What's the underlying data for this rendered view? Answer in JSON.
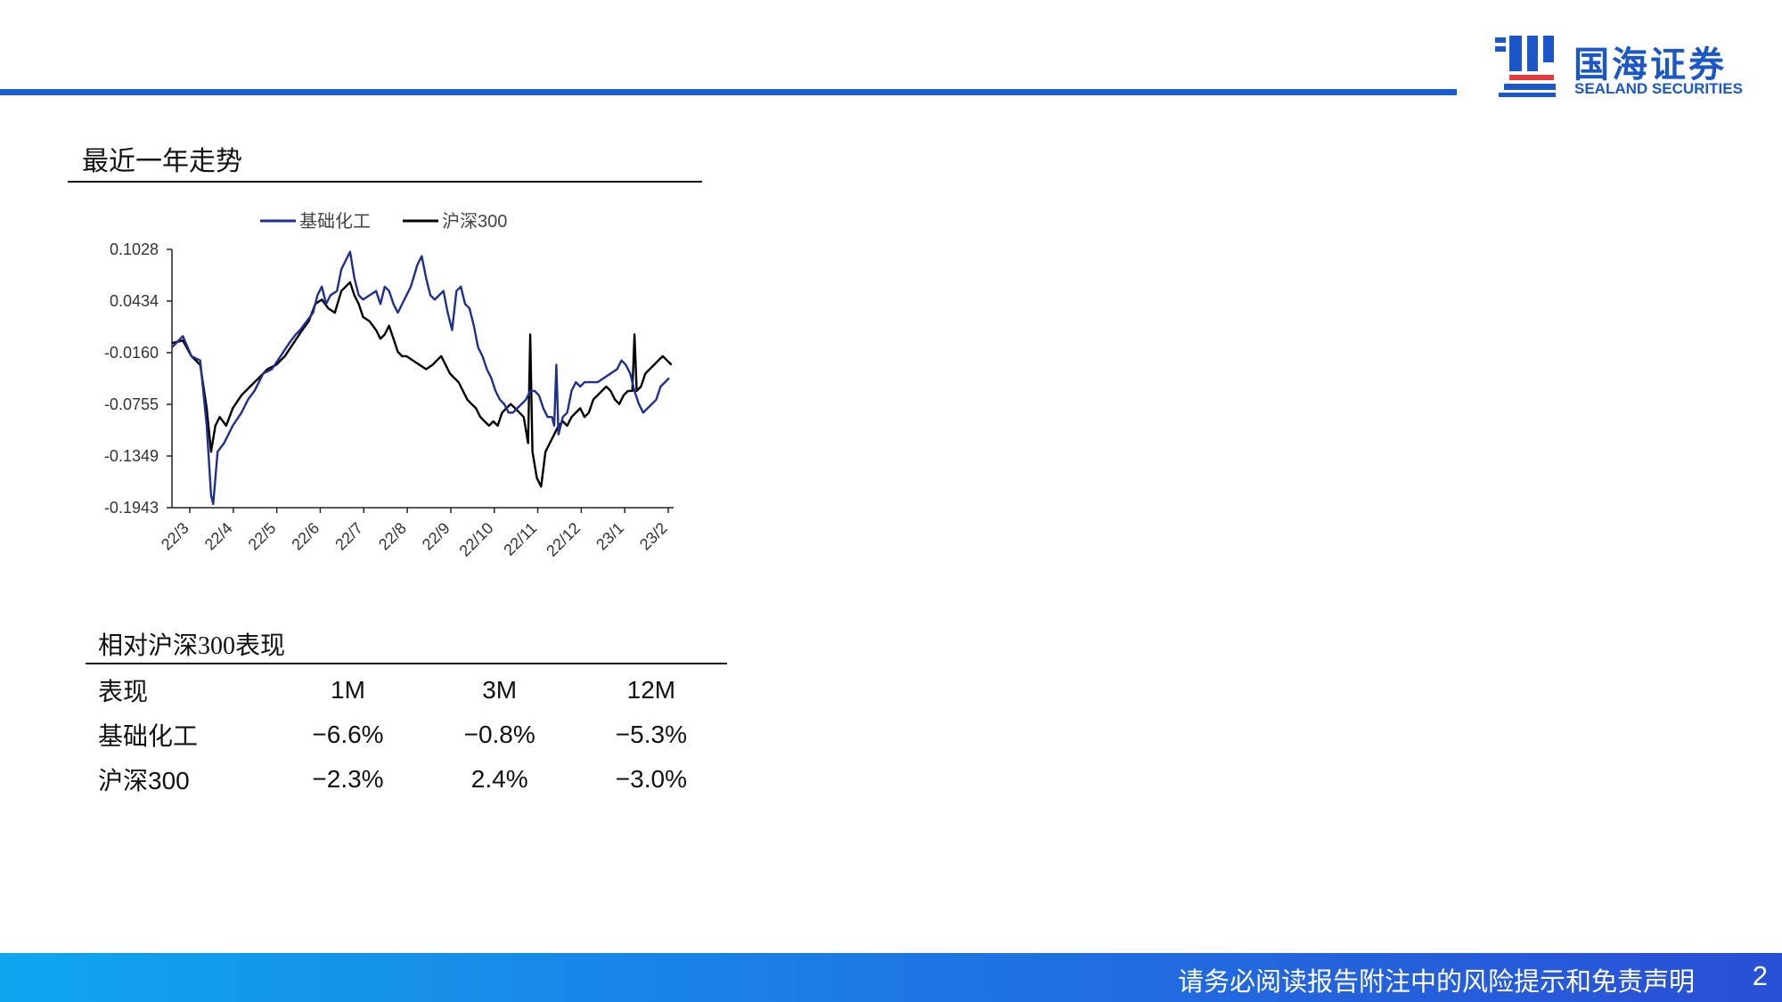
{
  "header": {
    "logo_cn": "国海证券",
    "logo_en": "SEALAND SECURITIES",
    "brand_color": "#1a5bd6"
  },
  "section_title": "最近一年走势",
  "chart_data": {
    "type": "line",
    "title": "",
    "xlabel": "",
    "ylabel": "",
    "ylim": [
      -0.1943,
      0.1028
    ],
    "yticks": [
      "0.1028",
      "0.0434",
      "-0.0160",
      "-0.0755",
      "-0.1349",
      "-0.1943"
    ],
    "xticks": [
      "22/3",
      "22/4",
      "22/5",
      "22/6",
      "22/7",
      "22/8",
      "22/9",
      "22/10",
      "22/11",
      "22/12",
      "23/1",
      "23/2"
    ],
    "legend": "top-center",
    "grid": false,
    "x_count": 232,
    "series": [
      {
        "name": "基础化工",
        "color": "#1f2f8f",
        "points": [
          [
            0,
            -0.01
          ],
          [
            5,
            0.003
          ],
          [
            9,
            -0.02
          ],
          [
            13,
            -0.025
          ],
          [
            16,
            -0.1
          ],
          [
            18,
            -0.18
          ],
          [
            19,
            -0.19
          ],
          [
            21,
            -0.13
          ],
          [
            24,
            -0.12
          ],
          [
            28,
            -0.1
          ],
          [
            32,
            -0.085
          ],
          [
            35,
            -0.07
          ],
          [
            38,
            -0.06
          ],
          [
            42,
            -0.04
          ],
          [
            46,
            -0.035
          ],
          [
            50,
            -0.02
          ],
          [
            54,
            -0.005
          ],
          [
            57,
            0.005
          ],
          [
            59,
            0.01
          ],
          [
            62,
            0.02
          ],
          [
            65,
            0.03
          ],
          [
            67,
            0.05
          ],
          [
            69,
            0.06
          ],
          [
            71,
            0.04
          ],
          [
            73,
            0.05
          ],
          [
            76,
            0.055
          ],
          [
            78,
            0.08
          ],
          [
            80,
            0.09
          ],
          [
            82,
            0.1
          ],
          [
            84,
            0.07
          ],
          [
            86,
            0.05
          ],
          [
            88,
            0.045
          ],
          [
            91,
            0.05
          ],
          [
            94,
            0.055
          ],
          [
            96,
            0.04
          ],
          [
            98,
            0.06
          ],
          [
            100,
            0.055
          ],
          [
            102,
            0.04
          ],
          [
            104,
            0.03
          ],
          [
            107,
            0.045
          ],
          [
            110,
            0.06
          ],
          [
            113,
            0.085
          ],
          [
            115,
            0.095
          ],
          [
            117,
            0.07
          ],
          [
            119,
            0.05
          ],
          [
            121,
            0.045
          ],
          [
            123,
            0.05
          ],
          [
            125,
            0.055
          ],
          [
            127,
            0.03
          ],
          [
            129,
            0.01
          ],
          [
            131,
            0.055
          ],
          [
            133,
            0.06
          ],
          [
            135,
            0.04
          ],
          [
            137,
            0.035
          ],
          [
            139,
            0.015
          ],
          [
            141,
            -0.01
          ],
          [
            143,
            -0.02
          ],
          [
            145,
            -0.035
          ],
          [
            147,
            -0.045
          ],
          [
            149,
            -0.06
          ],
          [
            151,
            -0.07
          ],
          [
            153,
            -0.075
          ],
          [
            155,
            -0.085
          ],
          [
            157,
            -0.085
          ],
          [
            159,
            -0.08
          ],
          [
            161,
            -0.075
          ],
          [
            163,
            -0.07
          ],
          [
            165,
            -0.06
          ],
          [
            167,
            -0.06
          ],
          [
            169,
            -0.065
          ],
          [
            171,
            -0.08
          ],
          [
            173,
            -0.09
          ],
          [
            175,
            -0.09
          ],
          [
            176,
            -0.1
          ],
          [
            177,
            -0.03
          ],
          [
            178,
            -0.11
          ],
          [
            180,
            -0.09
          ],
          [
            182,
            -0.085
          ],
          [
            184,
            -0.06
          ],
          [
            186,
            -0.05
          ],
          [
            188,
            -0.055
          ],
          [
            190,
            -0.05
          ],
          [
            193,
            -0.05
          ],
          [
            196,
            -0.05
          ],
          [
            199,
            -0.045
          ],
          [
            202,
            -0.04
          ],
          [
            205,
            -0.035
          ],
          [
            207,
            -0.025
          ],
          [
            209,
            -0.03
          ],
          [
            211,
            -0.04
          ],
          [
            213,
            -0.06
          ],
          [
            215,
            -0.075
          ],
          [
            217,
            -0.085
          ],
          [
            219,
            -0.08
          ],
          [
            221,
            -0.075
          ],
          [
            223,
            -0.07
          ],
          [
            225,
            -0.055
          ],
          [
            227,
            -0.05
          ],
          [
            229,
            -0.045
          ]
        ]
      },
      {
        "name": "沪深300",
        "color": "#000000",
        "points": [
          [
            0,
            -0.005
          ],
          [
            5,
            -0.002
          ],
          [
            9,
            -0.02
          ],
          [
            13,
            -0.03
          ],
          [
            16,
            -0.08
          ],
          [
            18,
            -0.13
          ],
          [
            20,
            -0.1
          ],
          [
            22,
            -0.09
          ],
          [
            25,
            -0.1
          ],
          [
            28,
            -0.08
          ],
          [
            32,
            -0.065
          ],
          [
            36,
            -0.055
          ],
          [
            40,
            -0.045
          ],
          [
            44,
            -0.035
          ],
          [
            48,
            -0.03
          ],
          [
            52,
            -0.02
          ],
          [
            56,
            -0.005
          ],
          [
            60,
            0.01
          ],
          [
            63,
            0.02
          ],
          [
            66,
            0.04
          ],
          [
            69,
            0.045
          ],
          [
            72,
            0.035
          ],
          [
            75,
            0.03
          ],
          [
            78,
            0.055
          ],
          [
            80,
            0.06
          ],
          [
            82,
            0.065
          ],
          [
            84,
            0.05
          ],
          [
            86,
            0.04
          ],
          [
            88,
            0.025
          ],
          [
            91,
            0.02
          ],
          [
            94,
            0.01
          ],
          [
            96,
            0.0
          ],
          [
            98,
            0.005
          ],
          [
            100,
            0.015
          ],
          [
            102,
            0.0
          ],
          [
            104,
            -0.015
          ],
          [
            106,
            -0.02
          ],
          [
            108,
            -0.02
          ],
          [
            111,
            -0.025
          ],
          [
            114,
            -0.03
          ],
          [
            117,
            -0.035
          ],
          [
            120,
            -0.03
          ],
          [
            122,
            -0.025
          ],
          [
            124,
            -0.02
          ],
          [
            126,
            -0.03
          ],
          [
            128,
            -0.04
          ],
          [
            130,
            -0.045
          ],
          [
            132,
            -0.05
          ],
          [
            134,
            -0.06
          ],
          [
            136,
            -0.07
          ],
          [
            138,
            -0.075
          ],
          [
            140,
            -0.08
          ],
          [
            142,
            -0.09
          ],
          [
            144,
            -0.095
          ],
          [
            146,
            -0.1
          ],
          [
            148,
            -0.095
          ],
          [
            150,
            -0.1
          ],
          [
            152,
            -0.085
          ],
          [
            154,
            -0.08
          ],
          [
            156,
            -0.075
          ],
          [
            158,
            -0.08
          ],
          [
            160,
            -0.085
          ],
          [
            162,
            -0.09
          ],
          [
            164,
            -0.12
          ],
          [
            165,
            0.005
          ],
          [
            166,
            -0.13
          ],
          [
            168,
            -0.16
          ],
          [
            170,
            -0.17
          ],
          [
            172,
            -0.13
          ],
          [
            174,
            -0.12
          ],
          [
            176,
            -0.11
          ],
          [
            178,
            -0.1
          ],
          [
            180,
            -0.095
          ],
          [
            182,
            -0.1
          ],
          [
            184,
            -0.09
          ],
          [
            186,
            -0.085
          ],
          [
            188,
            -0.08
          ],
          [
            190,
            -0.09
          ],
          [
            192,
            -0.085
          ],
          [
            194,
            -0.07
          ],
          [
            196,
            -0.065
          ],
          [
            198,
            -0.06
          ],
          [
            200,
            -0.055
          ],
          [
            202,
            -0.06
          ],
          [
            204,
            -0.07
          ],
          [
            206,
            -0.075
          ],
          [
            208,
            -0.065
          ],
          [
            210,
            -0.06
          ],
          [
            212,
            -0.06
          ],
          [
            213,
            0.005
          ],
          [
            214,
            -0.06
          ],
          [
            216,
            -0.055
          ],
          [
            218,
            -0.04
          ],
          [
            220,
            -0.035
          ],
          [
            222,
            -0.03
          ],
          [
            224,
            -0.025
          ],
          [
            226,
            -0.02
          ],
          [
            228,
            -0.025
          ],
          [
            230,
            -0.03
          ]
        ]
      }
    ]
  },
  "performance": {
    "title": "相对沪深300表现",
    "header": [
      "表现",
      "1M",
      "3M",
      "12M"
    ],
    "rows": [
      [
        "基础化工",
        "−6.6%",
        "−0.8%",
        "−5.3%"
      ],
      [
        "沪深300",
        "−2.3%",
        "2.4%",
        "−3.0%"
      ]
    ]
  },
  "footer": {
    "disclaimer": "请务必阅读报告附注中的风险提示和免责声明",
    "page_number": "2"
  }
}
